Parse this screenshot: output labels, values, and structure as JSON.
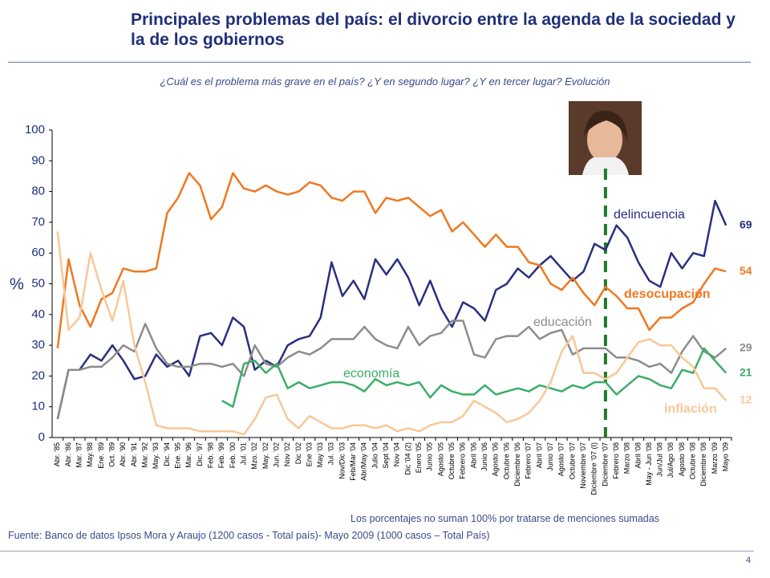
{
  "chart_data": {
    "type": "line",
    "title": "Principales problemas del país: el divorcio entre la agenda de la sociedad y la de los gobiernos",
    "subtitle": "¿Cuál es el problema más grave en el país? ¿Y en segundo lugar? ¿Y en tercer lugar? Evolución",
    "y_label": "%",
    "note": "Los porcentajes no suman 100% por tratarse de menciones sumadas",
    "source": "Fuente: Banco de datos Ipsos Mora y Araujo (1200 casos - Total país)- Mayo 2009 (1000 casos – Total País)",
    "page_number": "4",
    "categories": [
      "Abr. '85",
      "Abr. '86",
      "Mar. '87",
      "May.'88",
      "Ene. '89",
      "Oct. '89",
      "Abr. '90",
      "Abr. '91",
      "Mar. '92",
      "May. '93",
      "Dic. '94",
      "Ene. '95",
      "Mar. '96",
      "Dic. '97",
      "Feb. '98",
      "Feb. '99",
      "Feb. '00",
      "Jul. '01",
      "Mzo. '02",
      "May. '02",
      "Jun. '02",
      "Nov '02",
      "Dic '02",
      "Ene '03",
      "May '03",
      "Jul. '03",
      "Nov/Dic '03",
      "Feb/Mar '04",
      "Abr/May '04",
      "Julio '04",
      "Sept '04",
      "Nov '04",
      "Dic '04 (2)",
      "Enero '05",
      "Junio '05",
      "Agosto '05",
      "Octubre '05",
      "Febrero '06",
      "Abril '06",
      "Junio '06",
      "Agosto '06",
      "Octubre '06",
      "Diciembre '06",
      "Febrero '07",
      "Abril '07",
      "Junio '07",
      "Agosto '07",
      "Octubre '07",
      "Noviembre '07",
      "Diciembre '07 (I)",
      "Diciembre '07",
      "Febrero '08",
      "Marzo '08",
      "Abril '08",
      "May - Jun '08",
      "Jun/Jul '08",
      "Jul/Ago '08",
      "Agosto '08",
      "Octubre '08",
      "Diciembre '08",
      "Marzo '09",
      "Mayo '09"
    ],
    "series": [
      {
        "name": "delincuencia",
        "color": "#2a2f80",
        "values": [
          6,
          22,
          22,
          27,
          25,
          30,
          25,
          19,
          20,
          27,
          23,
          25,
          20,
          33,
          34,
          30,
          39,
          36,
          22,
          25,
          23,
          30,
          32,
          33,
          39,
          57,
          46,
          51,
          45,
          58,
          53,
          58,
          52,
          43,
          51,
          42,
          36,
          44,
          42,
          38,
          48,
          50,
          55,
          52,
          56,
          59,
          55,
          51,
          54,
          63,
          61,
          69,
          65,
          57,
          51,
          49,
          60,
          55,
          60,
          59,
          77,
          69
        ]
      },
      {
        "name": "desocupación",
        "color": "#f07820",
        "values": [
          29,
          58,
          43,
          36,
          45,
          47,
          55,
          54,
          54,
          55,
          73,
          78,
          86,
          82,
          71,
          75,
          86,
          81,
          80,
          82,
          80,
          79,
          80,
          83,
          82,
          78,
          77,
          80,
          80,
          73,
          78,
          77,
          78,
          75,
          72,
          74,
          67,
          70,
          66,
          62,
          66,
          62,
          62,
          57,
          56,
          50,
          48,
          52,
          47,
          43,
          49,
          46,
          42,
          42,
          35,
          39,
          39,
          42,
          44,
          50,
          55,
          54
        ]
      },
      {
        "name": "educación",
        "color": "#8c8c8c",
        "values": [
          6,
          22,
          22,
          23,
          23,
          26,
          30,
          28,
          37,
          29,
          24,
          23,
          23,
          24,
          24,
          23,
          24,
          20,
          30,
          24,
          23,
          26,
          28,
          27,
          29,
          32,
          32,
          32,
          36,
          32,
          30,
          29,
          36,
          30,
          33,
          34,
          38,
          38,
          27,
          26,
          32,
          33,
          33,
          36,
          32,
          34,
          35,
          27,
          29,
          29,
          29,
          26,
          26,
          25,
          23,
          24,
          21,
          28,
          33,
          28,
          26,
          29
        ]
      },
      {
        "name": "economía",
        "color": "#3cad68",
        "values": [
          null,
          null,
          null,
          null,
          null,
          null,
          null,
          null,
          null,
          null,
          null,
          null,
          null,
          null,
          null,
          12,
          10,
          24,
          25,
          21,
          24,
          16,
          18,
          16,
          17,
          18,
          18,
          17,
          15,
          19,
          17,
          18,
          17,
          18,
          13,
          17,
          15,
          14,
          14,
          17,
          14,
          15,
          16,
          15,
          17,
          16,
          15,
          17,
          16,
          18,
          18,
          14,
          17,
          20,
          19,
          17,
          16,
          22,
          21,
          29,
          25,
          21
        ]
      },
      {
        "name": "inflación",
        "color": "#f8c898",
        "values": [
          67,
          35,
          39,
          60,
          48,
          38,
          51,
          30,
          18,
          4,
          3,
          3,
          3,
          2,
          2,
          2,
          2,
          1,
          6,
          13,
          14,
          6,
          3,
          7,
          5,
          3,
          3,
          4,
          4,
          3,
          4,
          2,
          3,
          2,
          4,
          5,
          5,
          7,
          12,
          10,
          8,
          5,
          6,
          8,
          12,
          18,
          28,
          33,
          21,
          21,
          19,
          21,
          26,
          31,
          32,
          30,
          30,
          26,
          23,
          16,
          16,
          12
        ]
      }
    ],
    "ylim": [
      0,
      100
    ],
    "yticks": [
      0,
      10,
      20,
      30,
      40,
      50,
      60,
      70,
      80,
      90,
      100
    ],
    "grid": false
  }
}
